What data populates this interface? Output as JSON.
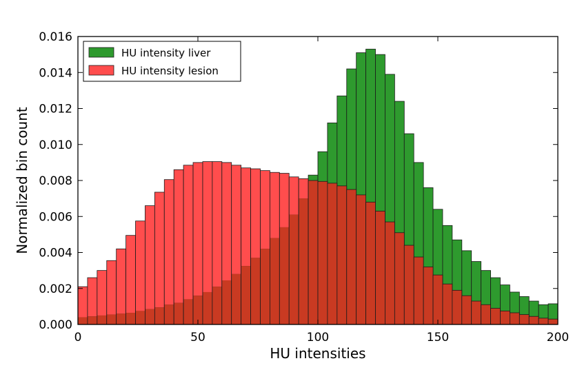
{
  "colors": {
    "liver": "#2e9a2e",
    "lesion": "#ff4d4d",
    "overlap": "#c93a22",
    "edge": "#1a1a1a"
  },
  "chart_data": {
    "type": "bar",
    "bin_edges_start": 0,
    "bin_width": 4,
    "xlim": [
      0,
      200
    ],
    "ylim": [
      0,
      0.016
    ],
    "xlabel": "HU intensities",
    "ylabel": "Normalized bin count",
    "x_ticks": [
      "0",
      "50",
      "100",
      "150",
      "200"
    ],
    "y_ticks": [
      "0.000",
      "0.002",
      "0.004",
      "0.006",
      "0.008",
      "0.010",
      "0.012",
      "0.014",
      "0.016"
    ],
    "grid": false,
    "legend_position": "top-left",
    "series": [
      {
        "name": "HU intensity liver",
        "color_key": "liver",
        "values": [
          0.0004,
          0.00045,
          0.0005,
          0.00055,
          0.0006,
          0.00065,
          0.00075,
          0.00085,
          0.00095,
          0.0011,
          0.0012,
          0.0014,
          0.0016,
          0.0018,
          0.0021,
          0.00245,
          0.0028,
          0.00325,
          0.0037,
          0.0042,
          0.0048,
          0.0054,
          0.0061,
          0.007,
          0.0083,
          0.0096,
          0.0112,
          0.0127,
          0.0142,
          0.0151,
          0.0153,
          0.015,
          0.0139,
          0.0124,
          0.0106,
          0.009,
          0.0076,
          0.0064,
          0.0055,
          0.0047,
          0.0041,
          0.0035,
          0.003,
          0.0026,
          0.0022,
          0.0018,
          0.00155,
          0.0013,
          0.0011,
          0.00115
        ]
      },
      {
        "name": "HU intensity lesion",
        "color_key": "lesion",
        "values": [
          0.0021,
          0.0026,
          0.003,
          0.00355,
          0.0042,
          0.00495,
          0.00575,
          0.0066,
          0.00735,
          0.00805,
          0.0086,
          0.00885,
          0.009,
          0.00905,
          0.00905,
          0.009,
          0.00885,
          0.0087,
          0.00865,
          0.00855,
          0.00845,
          0.0084,
          0.0082,
          0.0081,
          0.008,
          0.00795,
          0.00785,
          0.0077,
          0.0075,
          0.0072,
          0.0068,
          0.0063,
          0.0057,
          0.0051,
          0.0044,
          0.00375,
          0.0032,
          0.00275,
          0.00225,
          0.0019,
          0.0016,
          0.0013,
          0.0011,
          0.0009,
          0.00075,
          0.00065,
          0.00055,
          0.00045,
          0.00035,
          0.0003
        ]
      }
    ]
  }
}
